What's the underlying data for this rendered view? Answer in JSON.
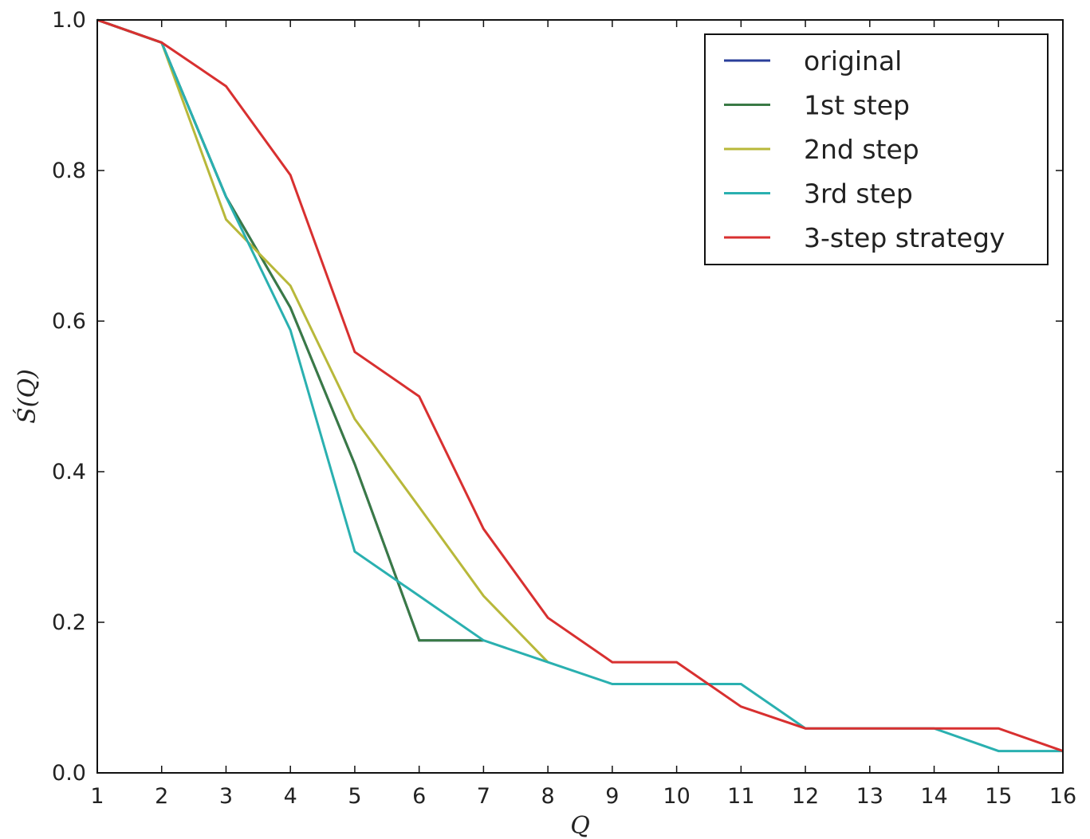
{
  "chart_data": {
    "type": "line",
    "xlabel": "Q",
    "ylabel": "Ś(Q)",
    "xlim": [
      1,
      16
    ],
    "ylim": [
      0,
      1
    ],
    "x_ticks": [
      "1",
      "2",
      "3",
      "4",
      "5",
      "6",
      "7",
      "8",
      "9",
      "10",
      "11",
      "12",
      "13",
      "14",
      "15",
      "16"
    ],
    "y_ticks": [
      "0.0",
      "0.2",
      "0.4",
      "0.6",
      "0.8",
      "1.0"
    ],
    "grid": false,
    "legend_position": "top-right",
    "series": [
      {
        "name": "original",
        "color": "#2a3f9a",
        "x": [
          1,
          2,
          3,
          4,
          5,
          6,
          7
        ],
        "y": [
          1.0,
          0.97,
          0.765,
          0.618,
          0.41,
          0.176,
          0.176
        ]
      },
      {
        "name": "1st step",
        "color": "#3a7a45",
        "x": [
          1,
          2,
          3,
          4,
          5,
          6,
          7
        ],
        "y": [
          1.0,
          0.97,
          0.765,
          0.618,
          0.41,
          0.176,
          0.176
        ]
      },
      {
        "name": "2nd step",
        "color": "#b8b83a",
        "x": [
          1,
          2,
          3,
          4,
          5,
          6,
          7,
          8
        ],
        "y": [
          1.0,
          0.97,
          0.735,
          0.647,
          0.47,
          0.353,
          0.235,
          0.147
        ]
      },
      {
        "name": "3rd step",
        "color": "#2ab0b0",
        "x": [
          1,
          2,
          3,
          4,
          5,
          6,
          7,
          8,
          9,
          10,
          11,
          12,
          13,
          14,
          15,
          16
        ],
        "y": [
          1.0,
          0.97,
          0.765,
          0.588,
          0.294,
          0.235,
          0.176,
          0.147,
          0.118,
          0.118,
          0.118,
          0.059,
          0.059,
          0.059,
          0.029,
          0.029
        ]
      },
      {
        "name": "3-step strategy",
        "color": "#d83030",
        "x": [
          1,
          2,
          3,
          4,
          5,
          6,
          7,
          8,
          9,
          10,
          11,
          12,
          13,
          14,
          15,
          16
        ],
        "y": [
          1.0,
          0.97,
          0.912,
          0.794,
          0.559,
          0.5,
          0.324,
          0.206,
          0.147,
          0.147,
          0.088,
          0.059,
          0.059,
          0.059,
          0.059,
          0.029
        ]
      }
    ]
  }
}
